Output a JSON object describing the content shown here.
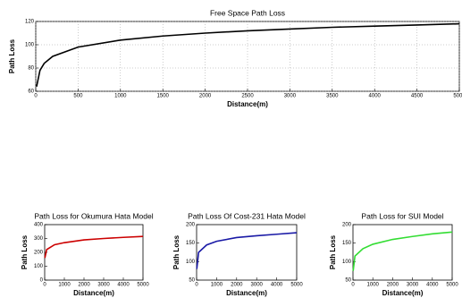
{
  "chart_data": [
    {
      "type": "line",
      "title": "Free Space Path Loss",
      "x_label": "Distance(m)",
      "y_label": "Path Loss",
      "x": [
        10,
        50,
        100,
        200,
        500,
        1000,
        1500,
        2000,
        2500,
        3000,
        3500,
        4000,
        4500,
        5000
      ],
      "values": [
        64,
        78,
        84,
        90,
        98,
        104,
        107.5,
        110,
        112,
        113.5,
        115,
        116,
        117,
        118
      ],
      "color": "#000000",
      "xlim": [
        0,
        5000
      ],
      "xticks": [
        0,
        500,
        1000,
        1500,
        2000,
        2500,
        3000,
        3500,
        4000,
        4500,
        5000
      ],
      "ylim": [
        60,
        120
      ],
      "yticks": [
        60,
        80,
        100,
        120
      ],
      "grid": true
    },
    {
      "type": "line",
      "title": "Path Loss for Okumura Hata Model",
      "x_label": "Distance(m)",
      "y_label": "Path Loss",
      "x": [
        10,
        100,
        500,
        1000,
        2000,
        3000,
        4000,
        5000
      ],
      "values": [
        160,
        220,
        255,
        270,
        290,
        300,
        308,
        315
      ],
      "color": "#cc0000",
      "xlim": [
        0,
        5000
      ],
      "xticks": [
        0,
        1000,
        2000,
        3000,
        4000,
        5000
      ],
      "ylim": [
        0,
        400
      ],
      "yticks": [
        0,
        100,
        200,
        300,
        400
      ],
      "grid": false
    },
    {
      "type": "line",
      "title": "Path Loss Of Cost-231 Hata Model",
      "x_label": "Distance(m)",
      "y_label": "Path Loss",
      "x": [
        10,
        100,
        500,
        1000,
        2000,
        3000,
        4000,
        5000
      ],
      "values": [
        80,
        125,
        145,
        155,
        165,
        170,
        174,
        178
      ],
      "color": "#1a1aa6",
      "xlim": [
        0,
        5000
      ],
      "xticks": [
        0,
        1000,
        2000,
        3000,
        4000,
        5000
      ],
      "ylim": [
        50,
        200
      ],
      "yticks": [
        50,
        100,
        150,
        200
      ],
      "grid": false
    },
    {
      "type": "line",
      "title": "Path Loss for SUI Model",
      "x_label": "Distance(m)",
      "y_label": "Path Loss",
      "x": [
        10,
        100,
        500,
        1000,
        2000,
        3000,
        4000,
        5000
      ],
      "values": [
        75,
        115,
        135,
        147,
        160,
        168,
        175,
        180
      ],
      "color": "#33dd33",
      "xlim": [
        0,
        5000
      ],
      "xticks": [
        0,
        1000,
        2000,
        3000,
        4000,
        5000
      ],
      "ylim": [
        50,
        200
      ],
      "yticks": [
        50,
        100,
        150,
        200
      ],
      "grid": false
    }
  ]
}
